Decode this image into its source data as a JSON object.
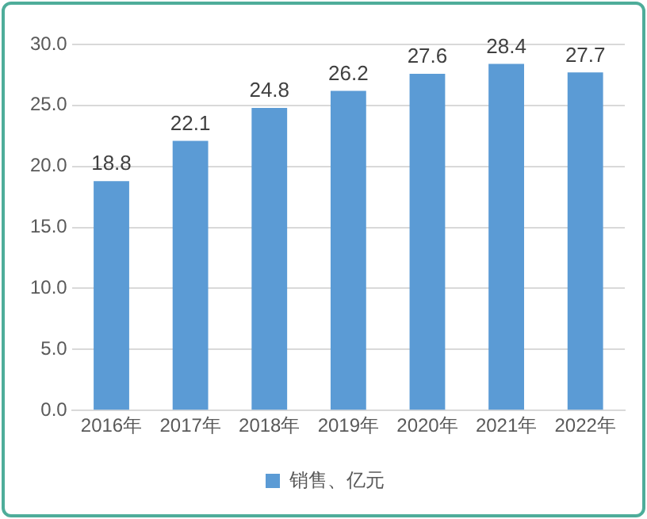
{
  "chart_data": {
    "type": "bar",
    "categories": [
      "2016年",
      "2017年",
      "2018年",
      "2019年",
      "2020年",
      "2021年",
      "2022年"
    ],
    "series": [
      {
        "name": "销售、亿元",
        "color": "#5b9bd5",
        "values": [
          18.8,
          22.1,
          24.8,
          26.2,
          27.6,
          28.4,
          27.7
        ]
      }
    ],
    "ylim": [
      0,
      30
    ],
    "yticks": [
      {
        "value": 0,
        "label": "0.0"
      },
      {
        "value": 5,
        "label": "5.0"
      },
      {
        "value": 10,
        "label": "10.0"
      },
      {
        "value": 15,
        "label": "15.0"
      },
      {
        "value": 20,
        "label": "20.0"
      },
      {
        "value": 25,
        "label": "25.0"
      },
      {
        "value": 30,
        "label": "30.0"
      }
    ],
    "grid": "y",
    "legend": "bottom",
    "data_labels": true
  }
}
